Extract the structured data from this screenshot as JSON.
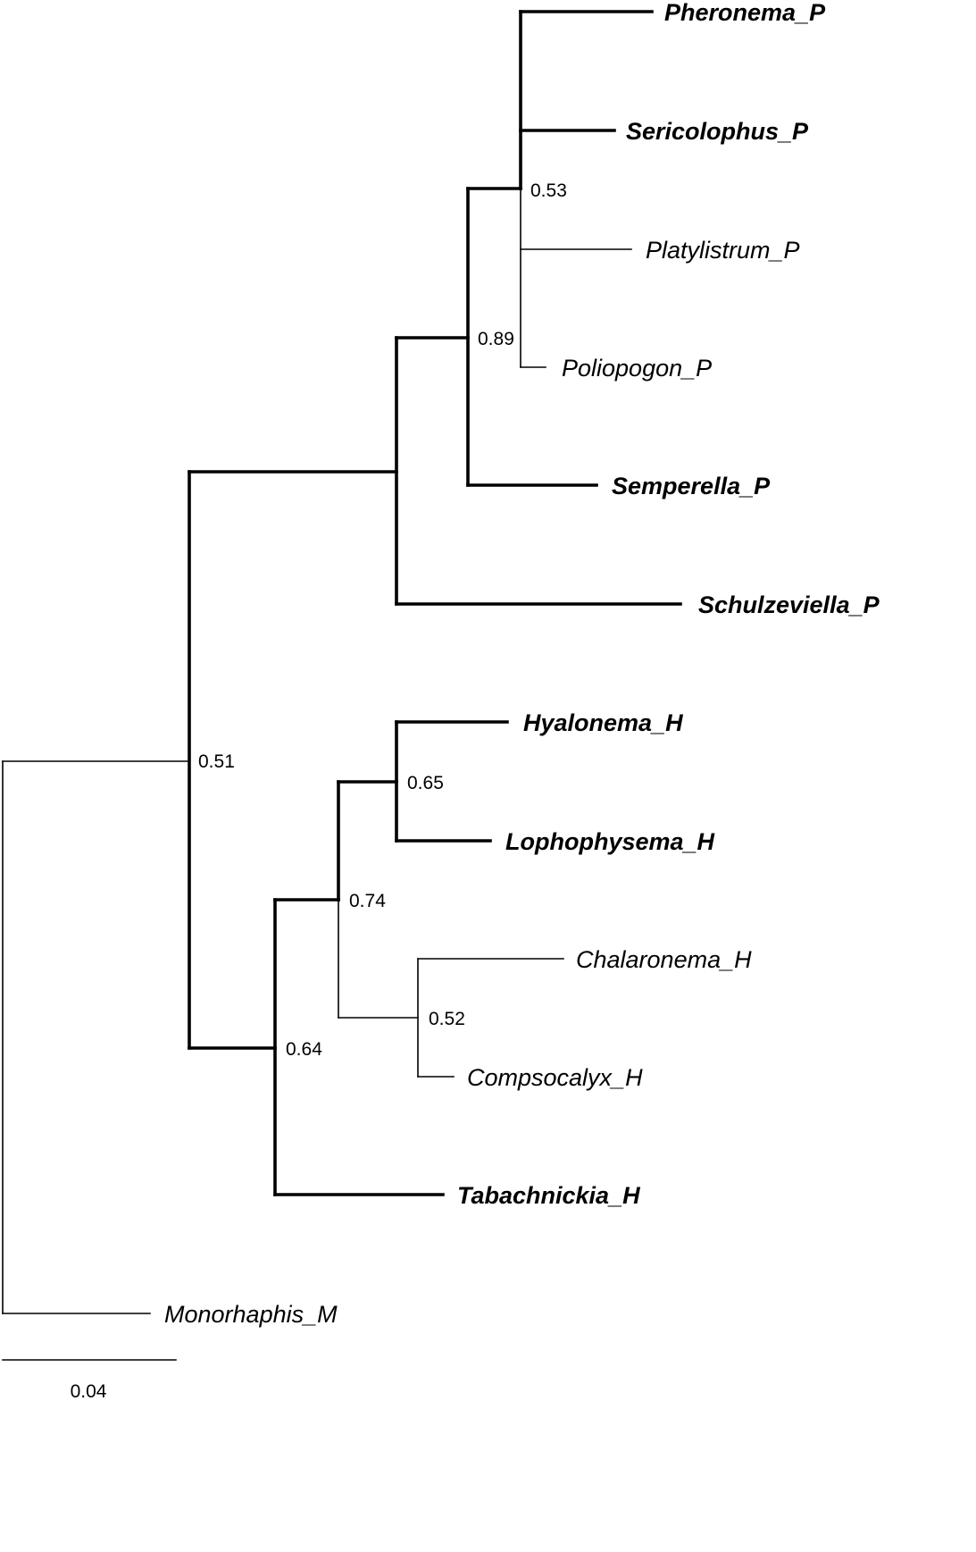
{
  "taxa": [
    {
      "id": "pheronema",
      "label": "Pheronema_P",
      "bold": true
    },
    {
      "id": "sericolophus",
      "label": "Sericolophus_P",
      "bold": true
    },
    {
      "id": "platylistrum",
      "label": "Platylistrum_P",
      "bold": false
    },
    {
      "id": "poliopogon",
      "label": "Poliopogon_P",
      "bold": false
    },
    {
      "id": "semperella",
      "label": "Semperella_P",
      "bold": true
    },
    {
      "id": "schulzeviella",
      "label": "Schulzeviella_P",
      "bold": true
    },
    {
      "id": "hyalonema",
      "label": "Hyalonema_H",
      "bold": true
    },
    {
      "id": "lophophysema",
      "label": "Lophophysema_H",
      "bold": true
    },
    {
      "id": "chalaronema",
      "label": "Chalaronema_H",
      "bold": false
    },
    {
      "id": "compsocalyx",
      "label": "Compsocalyx_H",
      "bold": false
    },
    {
      "id": "tabachnickia",
      "label": "Tabachnickia_H",
      "bold": true
    },
    {
      "id": "monorhaphis",
      "label": "Monorhaphis_M",
      "bold": false
    }
  ],
  "support_values": [
    {
      "node": "clade-pheronema-poliopogon",
      "value": "0.53"
    },
    {
      "node": "clade-pheronema-semperella",
      "value": "0.89"
    },
    {
      "node": "clade-ingroup",
      "value": "0.51"
    },
    {
      "node": "clade-hyalonema-lophophysema",
      "value": "0.65"
    },
    {
      "node": "clade-hyalonema-compsocalyx",
      "value": "0.74"
    },
    {
      "node": "clade-chalaronema-compsocalyx",
      "value": "0.52"
    },
    {
      "node": "clade-hyalonemidae",
      "value": "0.64"
    }
  ],
  "scale_bar": {
    "label": "0.04"
  }
}
